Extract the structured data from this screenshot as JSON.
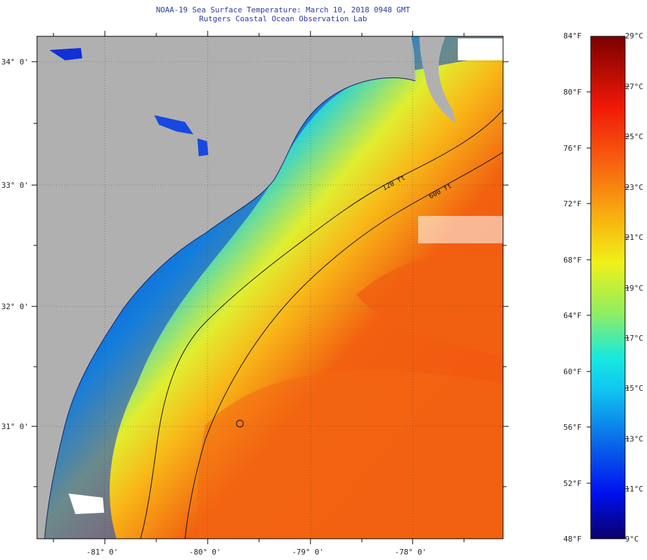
{
  "header": {
    "title": "NOAA-19 Sea Surface Temperature:  March 10, 2018 0948 GMT",
    "subtitle": "Rutgers Coastal Ocean Observation Lab"
  },
  "map": {
    "lat_labels": [
      "34° 0'",
      "33° 0'",
      "32° 0'",
      "31° 0'"
    ],
    "lon_labels": [
      "-81° 0'",
      "-80° 0'",
      "-79° 0'",
      "-78° 0'"
    ],
    "contours": [
      "120 ft",
      "600 ft"
    ],
    "colors": {
      "land": "#b0b0b0",
      "cold": "#1030d0",
      "warm": "#f04010"
    }
  },
  "colorbar": {
    "fahrenheit": [
      "84°F",
      "80°F",
      "76°F",
      "72°F",
      "68°F",
      "64°F",
      "60°F",
      "56°F",
      "52°F",
      "48°F"
    ],
    "celsius": [
      "29°C",
      "27°C",
      "25°C",
      "23°C",
      "21°C",
      "19°C",
      "17°C",
      "15°C",
      "13°C",
      "11°C",
      "9°C"
    ]
  }
}
